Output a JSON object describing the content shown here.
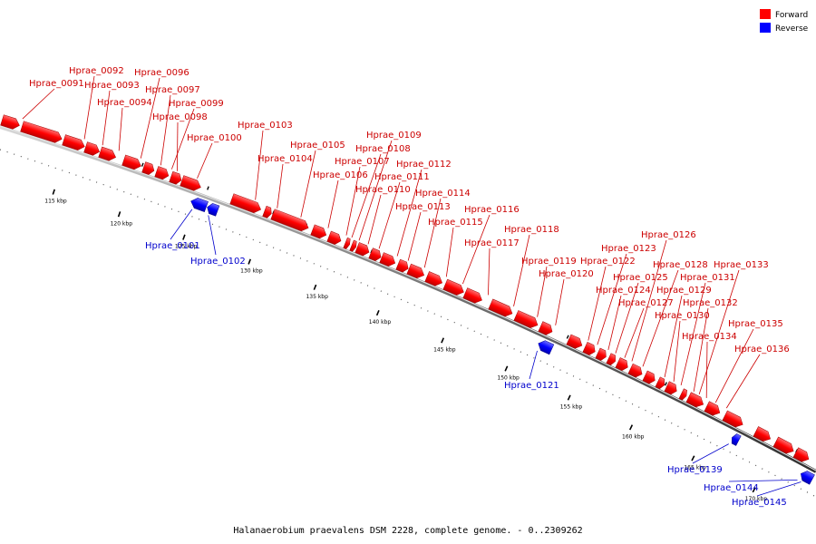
{
  "legend": {
    "forward_label": "Forward",
    "reverse_label": "Reverse",
    "forward_color": "#ff0000",
    "reverse_color": "#0000ff"
  },
  "caption": "Halanaerobium praevalens DSM 2228, complete genome. - 0..2309262",
  "ticks": [
    "115 kbp",
    "120 kbp",
    "125 kbp",
    "130 kbp",
    "135 kbp",
    "140 kbp",
    "145 kbp",
    "150 kbp",
    "155 kbp",
    "160 kbp",
    "165 kbp",
    "170 kbp"
  ],
  "forward_genes": [
    "Hprae_0091",
    "Hprae_0092",
    "Hprae_0093",
    "Hprae_0094",
    "Hprae_0096",
    "Hprae_0097",
    "Hprae_0098",
    "Hprae_0099",
    "Hprae_0100",
    "Hprae_0103",
    "Hprae_0104",
    "Hprae_0105",
    "Hprae_0106",
    "Hprae_0107",
    "Hprae_0108",
    "Hprae_0109",
    "Hprae_0110",
    "Hprae_0111",
    "Hprae_0112",
    "Hprae_0113",
    "Hprae_0114",
    "Hprae_0115",
    "Hprae_0116",
    "Hprae_0117",
    "Hprae_0118",
    "Hprae_0119",
    "Hprae_0120",
    "Hprae_0122",
    "Hprae_0123",
    "Hprae_0124",
    "Hprae_0125",
    "Hprae_0126",
    "Hprae_0127",
    "Hprae_0128",
    "Hprae_0129",
    "Hprae_0130",
    "Hprae_0131",
    "Hprae_0132",
    "Hprae_0133",
    "Hprae_0134",
    "Hprae_0135",
    "Hprae_0136"
  ],
  "reverse_genes": [
    "Hprae_0101",
    "Hprae_0102",
    "Hprae_0121",
    "Hprae_0139",
    "Hprae_0144",
    "Hprae_0145"
  ]
}
